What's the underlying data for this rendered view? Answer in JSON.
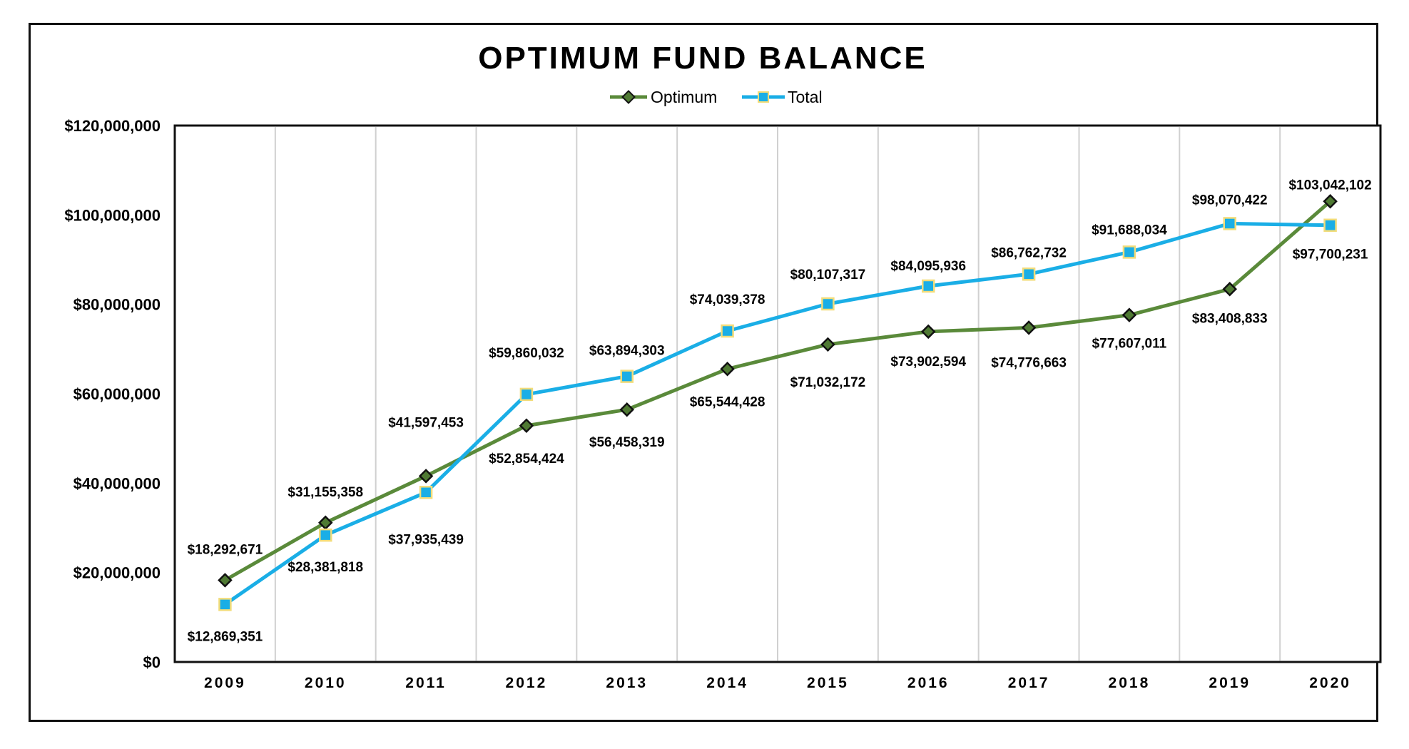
{
  "chart_data": {
    "type": "line",
    "title": "OPTIMUM FUND BALANCE",
    "categories": [
      "2009",
      "2010",
      "2011",
      "2012",
      "2013",
      "2014",
      "2015",
      "2016",
      "2017",
      "2018",
      "2019",
      "2020"
    ],
    "ylim": [
      0,
      120000000
    ],
    "yticks": [
      0,
      20000000,
      40000000,
      60000000,
      80000000,
      100000000,
      120000000
    ],
    "ytick_labels": [
      "$0",
      "$20,000,000",
      "$40,000,000",
      "$60,000,000",
      "$80,000,000",
      "$100,000,000",
      "$120,000,000"
    ],
    "grid": "vertical",
    "legend": "top-center",
    "series": [
      {
        "name": "Optimum",
        "color": "#5a8a3a",
        "marker": "diamond",
        "marker_fill": "#4f7a33",
        "marker_edge": "#111111",
        "values": [
          18292671,
          31155358,
          41597453,
          52854424,
          56458319,
          65544428,
          71032172,
          73902594,
          74776663,
          77607011,
          83408833,
          103042102
        ],
        "labels": [
          "$18,292,671",
          "$31,155,358",
          "$41,597,453",
          "$52,854,424",
          "$56,458,319",
          "$65,544,428",
          "$71,032,172",
          "$73,902,594",
          "$74,776,663",
          "$77,607,011",
          "$83,408,833",
          "$103,042,102"
        ]
      },
      {
        "name": "Total",
        "color": "#1aaee6",
        "marker": "square",
        "marker_fill": "#1aaee6",
        "marker_edge": "#f2dc7a",
        "values": [
          12869351,
          28381818,
          37935439,
          59860032,
          63894303,
          74039378,
          80107317,
          84095936,
          86762732,
          91688034,
          98070422,
          97700231
        ],
        "labels": [
          "$12,869,351",
          "$28,381,818",
          "$37,935,439",
          "$59,860,032",
          "$63,894,303",
          "$74,039,378",
          "$80,107,317",
          "$84,095,936",
          "$86,762,732",
          "$91,688,034",
          "$98,070,422",
          "$97,700,231"
        ]
      }
    ]
  }
}
